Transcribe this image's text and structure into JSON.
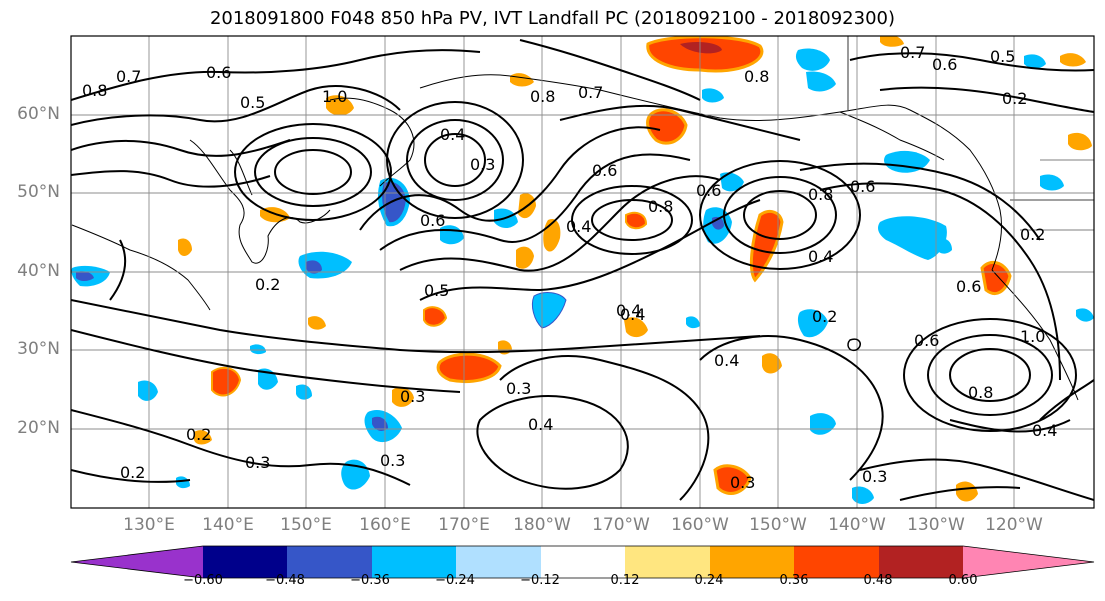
{
  "title": "2018091800 F048 850 hPa PV, IVT Landfall PC (2018092100 - 2018092300)",
  "lat_labels": [
    "60°N",
    "50°N",
    "40°N",
    "30°N",
    "20°N"
  ],
  "lon_labels": [
    "130°E",
    "140°E",
    "150°E",
    "160°E",
    "170°E",
    "180°W",
    "170°W",
    "160°W",
    "150°W",
    "140°W",
    "130°W",
    "120°W"
  ],
  "colorbar": {
    "ticks": [
      "−0.60",
      "−0.48",
      "−0.36",
      "−0.24",
      "−0.12",
      "0.12",
      "0.24",
      "0.36",
      "0.48",
      "0.60"
    ],
    "colors": [
      "#9932CC",
      "#00008B",
      "#3656C8",
      "#00BFFF",
      "#B0E0FF",
      "#FFFFFF",
      "#FFE680",
      "#FFA500",
      "#FF4500",
      "#B22222",
      "#FF85B3"
    ]
  },
  "contour_labels": [
    "0.8",
    "0.7",
    "0.6",
    "0.5",
    "1.0",
    "0.8",
    "0.7",
    "0.4",
    "0.3",
    "0.6",
    "0.4",
    "0.2",
    "0.3",
    "0.4",
    "0.3",
    "0.2",
    "0.3",
    "0.2",
    "0.3",
    "0.4",
    "0.3",
    "0.4",
    "0.6",
    "0.8",
    "0.6",
    "0.8",
    "0.2",
    "0.7",
    "0.6",
    "0.5",
    "0.6",
    "0.8",
    "0.6",
    "1.0",
    "0.4",
    "0.6",
    "0.3",
    "0.8",
    "0.2",
    "0.4",
    "0.2",
    "0.5",
    "0.4"
  ]
}
